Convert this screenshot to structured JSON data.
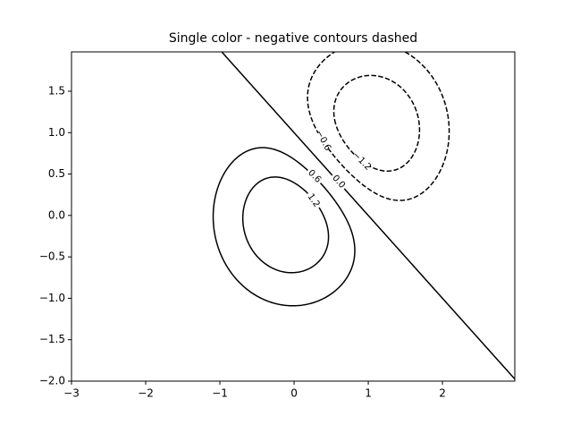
{
  "chart_data": {
    "type": "contour",
    "title": "Single color - negative contours dashed",
    "color": "#000000",
    "negative_linestyle": "dashed",
    "levels": [
      {
        "value": -1.2,
        "label": "−1.2"
      },
      {
        "value": -0.6,
        "label": "−0.6"
      },
      {
        "value": 0.0,
        "label": "0.0"
      },
      {
        "value": 0.6,
        "label": "0.6"
      },
      {
        "value": 1.2,
        "label": "1.2"
      }
    ],
    "xlim": [
      -3,
      2.975
    ],
    "ylim": [
      -2,
      1.975
    ],
    "xticks": [
      {
        "value": -3,
        "label": "−3"
      },
      {
        "value": -2,
        "label": "−2"
      },
      {
        "value": -1,
        "label": "−1"
      },
      0,
      1,
      2
    ],
    "yticks": [
      {
        "value": -2.0,
        "label": "−2.0"
      },
      {
        "value": -1.5,
        "label": "−1.5"
      },
      {
        "value": -1.0,
        "label": "−1.0"
      },
      {
        "value": -0.5,
        "label": "−0.5"
      },
      {
        "value": 0.0,
        "label": "0.0"
      },
      {
        "value": 0.5,
        "label": "0.5"
      },
      {
        "value": 1.0,
        "label": "1.0"
      },
      {
        "value": 1.5,
        "label": "1.5"
      }
    ]
  }
}
